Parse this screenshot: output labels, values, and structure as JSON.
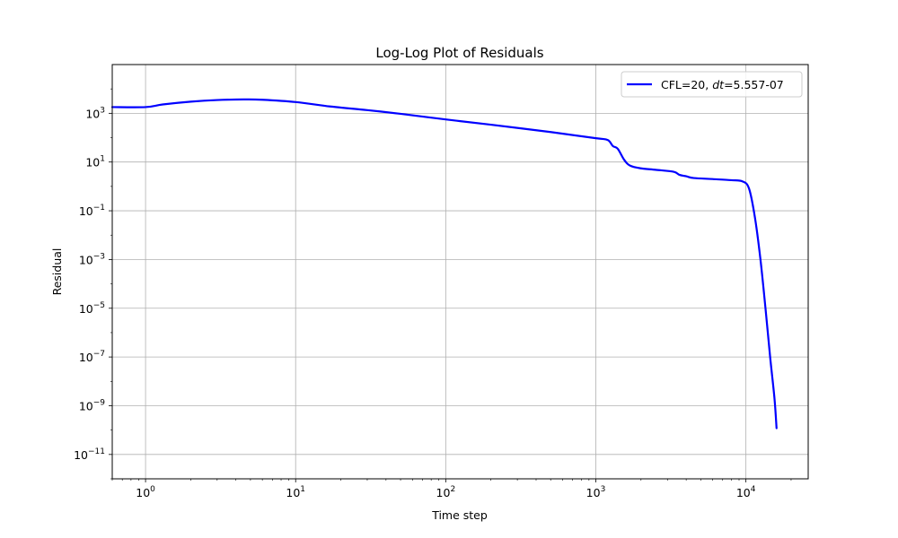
{
  "chart_data": {
    "type": "line",
    "title": "Log-Log Plot of Residuals",
    "xlabel": "Time step",
    "ylabel": "Residual",
    "xscale": "log",
    "yscale": "log",
    "xlim": [
      0.6,
      26000
    ],
    "ylim": [
      1e-12,
      100000.0
    ],
    "grid": true,
    "legend_position": "top-right",
    "x_ticks": [
      {
        "value": 1,
        "mantissa": "10",
        "exponent": "0"
      },
      {
        "value": 10,
        "mantissa": "10",
        "exponent": "1"
      },
      {
        "value": 100,
        "mantissa": "10",
        "exponent": "2"
      },
      {
        "value": 1000,
        "mantissa": "10",
        "exponent": "3"
      },
      {
        "value": 10000,
        "mantissa": "10",
        "exponent": "4"
      }
    ],
    "y_ticks": [
      {
        "value": 1000.0,
        "mantissa": "10",
        "exponent": "3"
      },
      {
        "value": 10.0,
        "mantissa": "10",
        "exponent": "1"
      },
      {
        "value": 0.1,
        "mantissa": "10",
        "exponent": "−1"
      },
      {
        "value": 0.001,
        "mantissa": "10",
        "exponent": "−3"
      },
      {
        "value": 1e-05,
        "mantissa": "10",
        "exponent": "−5"
      },
      {
        "value": 1e-07,
        "mantissa": "10",
        "exponent": "−7"
      },
      {
        "value": 1e-09,
        "mantissa": "10",
        "exponent": "−9"
      },
      {
        "value": 1e-11,
        "mantissa": "10",
        "exponent": "−11"
      }
    ],
    "series": [
      {
        "name": "CFL=20, dt=5.557-07",
        "legend": {
          "prefix": "CFL=20, ",
          "italic": "dt",
          "suffix": "=5.557-07"
        },
        "color": "#0000ff",
        "points": [
          [
            0.6,
            1800
          ],
          [
            1.0,
            1800
          ],
          [
            1.3,
            2300
          ],
          [
            2.0,
            3000
          ],
          [
            3.0,
            3500
          ],
          [
            4.5,
            3700
          ],
          [
            6.0,
            3600
          ],
          [
            10.0,
            2900
          ],
          [
            17.0,
            1900
          ],
          [
            30.0,
            1350
          ],
          [
            50.0,
            950
          ],
          [
            100.0,
            560
          ],
          [
            200.0,
            340
          ],
          [
            500.0,
            170
          ],
          [
            1000.0,
            95
          ],
          [
            1200.0,
            80
          ],
          [
            1300.0,
            45
          ],
          [
            1400.0,
            35
          ],
          [
            1550.0,
            12
          ],
          [
            1700.0,
            7
          ],
          [
            2000.0,
            5.5
          ],
          [
            2500.0,
            4.8
          ],
          [
            3300.0,
            4.0
          ],
          [
            3600.0,
            3.0
          ],
          [
            4000.0,
            2.6
          ],
          [
            4500.0,
            2.2
          ],
          [
            6000.0,
            2.0
          ],
          [
            8000.0,
            1.8
          ],
          [
            9500.0,
            1.6
          ],
          [
            10500.0,
            0.8
          ],
          [
            11500.0,
            0.05
          ],
          [
            12500.0,
            0.001
          ],
          [
            13500.0,
            1e-05
          ],
          [
            14500.0,
            1e-07
          ],
          [
            15500.0,
            2e-09
          ],
          [
            16000.0,
            1.2e-10
          ]
        ]
      }
    ]
  }
}
